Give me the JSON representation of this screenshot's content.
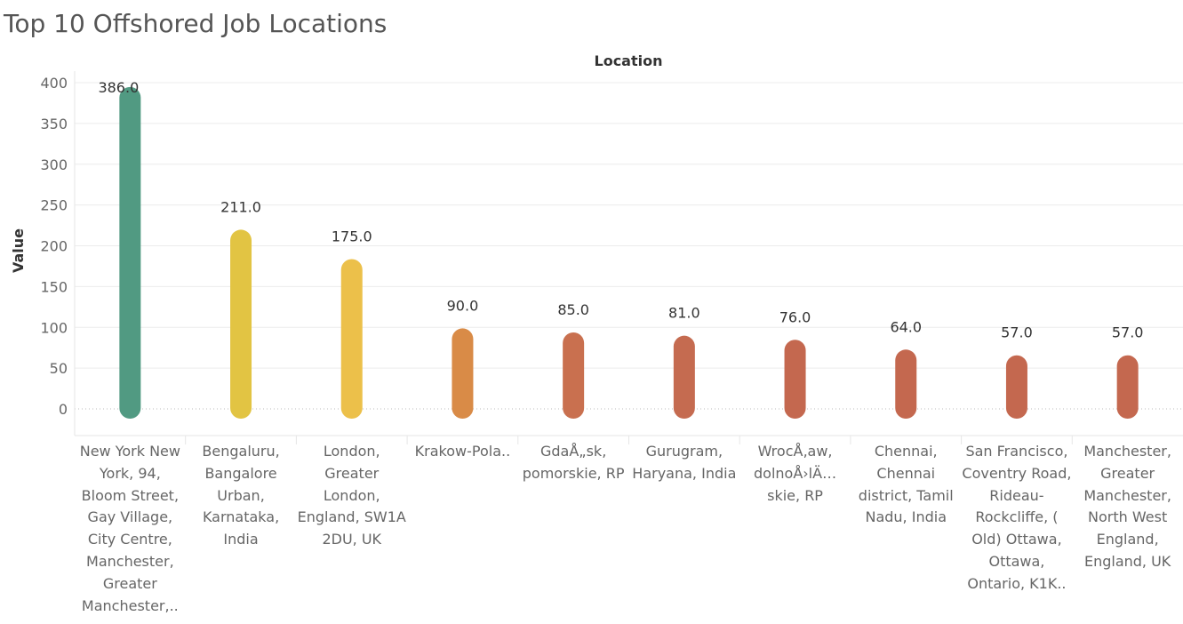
{
  "title": "Top 10 Offshored Job Locations",
  "chart_data": {
    "type": "bar",
    "title": "Top 10 Offshored Job Locations",
    "xlabel": "Location",
    "ylabel": "Value",
    "ylim": [
      0,
      400
    ],
    "yticks": [
      0,
      50,
      100,
      150,
      200,
      250,
      300,
      350,
      400
    ],
    "categories": [
      "New York New York, 94, Bloom Street, Gay Village, City Centre, Manchester, Greater Manchester,..",
      "Bengaluru, Bangalore Urban, Karnataka, India",
      "London, Greater London, England, SW1A 2DU, UK",
      "Krakow-Pola..",
      "GdaÅ„sk, pomorskie, RP",
      "Gurugram, Haryana, India",
      "WrocÅ‚aw, dolnoÅ›lÄ… skie, RP",
      "Chennai, Chennai district, Tamil Nadu, India",
      "San Francisco, Coventry Road, Rideau-Rockcliffe, ( Old) Ottawa, Ottawa, Ontario, K1K..",
      "Manchester, Greater Manchester, North West England, England, UK"
    ],
    "values": [
      386,
      211,
      175,
      90,
      85,
      81,
      76,
      64,
      57,
      57
    ],
    "value_labels": [
      "386.0",
      "211.0",
      "175.0",
      "90.0",
      "85.0",
      "81.0",
      "76.0",
      "64.0",
      "57.0",
      "57.0"
    ],
    "colors": [
      "#519a82",
      "#e2c443",
      "#ecc04a",
      "#d98b47",
      "#c9704f",
      "#c56b50",
      "#c4684f",
      "#c4684f",
      "#c4684f",
      "#c4684f"
    ],
    "grid": true,
    "legend": "none"
  }
}
